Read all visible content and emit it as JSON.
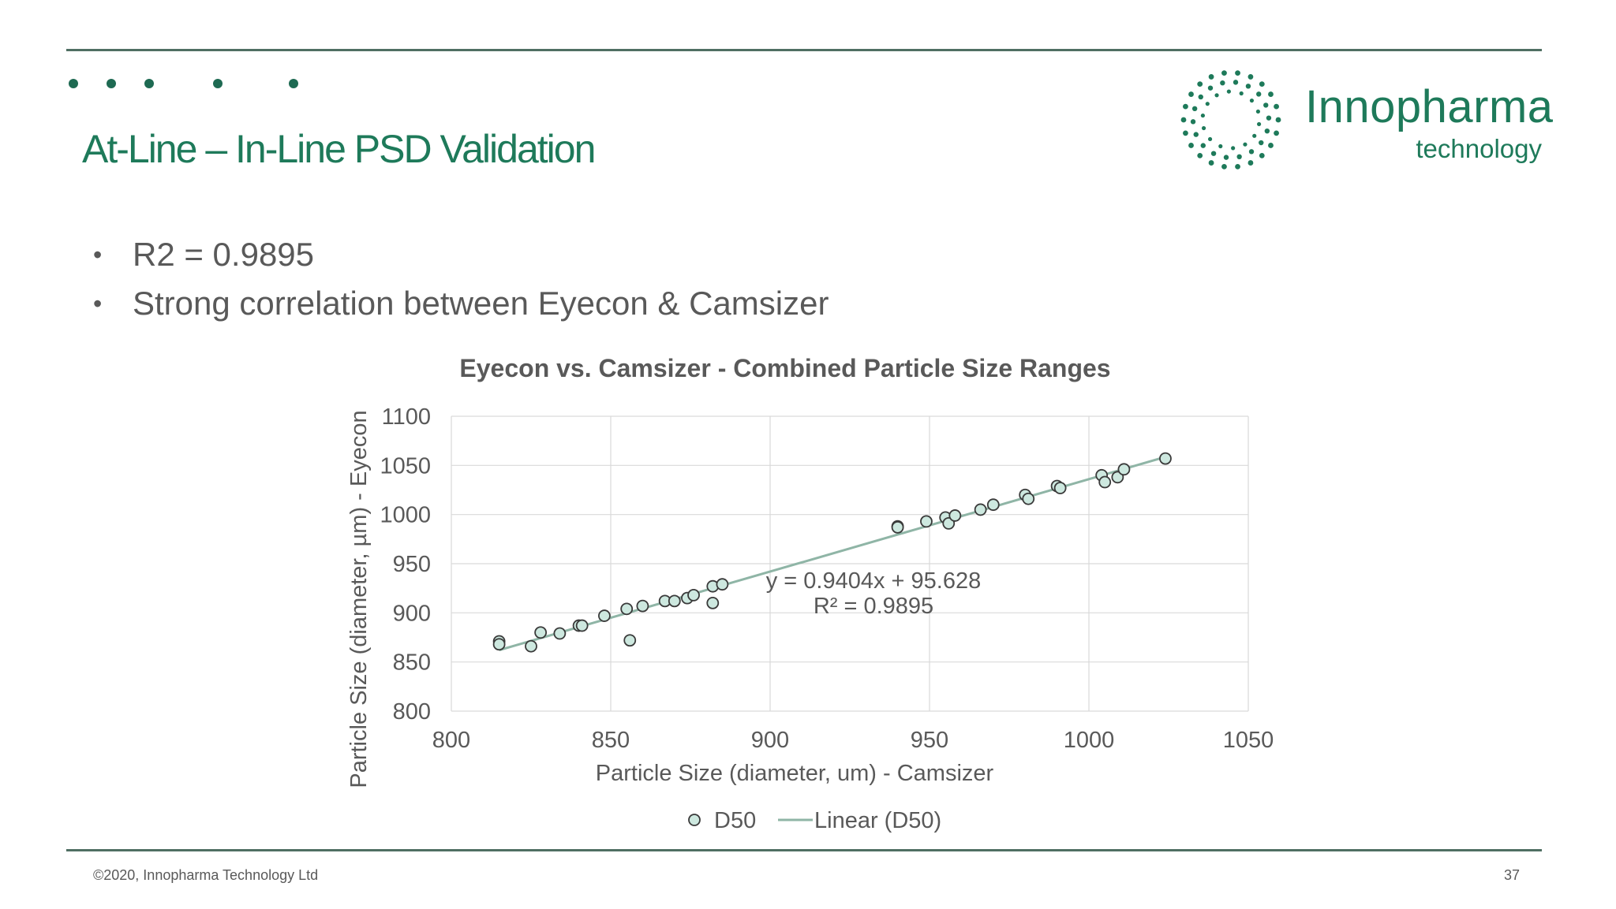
{
  "slide": {
    "title": "At-Line – In-Line PSD Validation",
    "bullets": [
      "R2 = 0.9895",
      "Strong correlation between Eyecon & Camsizer"
    ],
    "footer_left": "©2020, Innopharma Technology Ltd",
    "page_number": "37",
    "accent_color": "#1e7a5a",
    "rule_color": "#4f6f63"
  },
  "logo": {
    "name": "Innopharma",
    "sub": "technology",
    "icon": "dotted-ring-logo-icon",
    "color": "#1e7a5a"
  },
  "chart_data": {
    "type": "scatter",
    "title": "Eyecon  vs. Camsizer  - Combined  Particle  Size  Ranges",
    "xlabel": "Particle Size (diameter, um) - Camsizer",
    "ylabel": "Particle Size (diameter, µm) - Eyecon",
    "xlim": [
      800,
      1050
    ],
    "ylim": [
      800,
      1100
    ],
    "xticks": [
      800,
      850,
      900,
      950,
      1000,
      1050
    ],
    "yticks": [
      800,
      850,
      900,
      950,
      1000,
      1050,
      1100
    ],
    "grid": true,
    "legend_position": "bottom",
    "marker_fill": "#cde8df",
    "marker_edge": "#3a3a3a",
    "trendline_color": "#8fb5a6",
    "series": [
      {
        "name": "D50",
        "points": [
          [
            815,
            871
          ],
          [
            815,
            868
          ],
          [
            825,
            866
          ],
          [
            828,
            880
          ],
          [
            834,
            879
          ],
          [
            840,
            887
          ],
          [
            841,
            887
          ],
          [
            848,
            897
          ],
          [
            855,
            904
          ],
          [
            856,
            872
          ],
          [
            860,
            907
          ],
          [
            867,
            912
          ],
          [
            870,
            912
          ],
          [
            874,
            915
          ],
          [
            876,
            918
          ],
          [
            882,
            927
          ],
          [
            882,
            910
          ],
          [
            885,
            929
          ],
          [
            940,
            988
          ],
          [
            940,
            987
          ],
          [
            949,
            993
          ],
          [
            955,
            997
          ],
          [
            956,
            991
          ],
          [
            958,
            999
          ],
          [
            966,
            1005
          ],
          [
            970,
            1010
          ],
          [
            980,
            1020
          ],
          [
            981,
            1016
          ],
          [
            990,
            1029
          ],
          [
            991,
            1027
          ],
          [
            1004,
            1040
          ],
          [
            1005,
            1033
          ],
          [
            1009,
            1038
          ],
          [
            1011,
            1046
          ],
          [
            1024,
            1057
          ]
        ]
      }
    ],
    "trendline": {
      "name": "Linear (D50)",
      "slope": 0.9404,
      "intercept": 95.628,
      "x_range": [
        815,
        1024
      ],
      "equation_label": "y = 0.9404x + 95.628",
      "r2_label": "R² = 0.9895"
    }
  }
}
